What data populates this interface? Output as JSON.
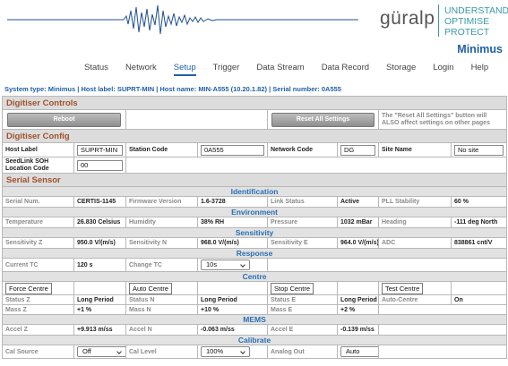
{
  "header": {
    "logo": "güralp",
    "tagline": [
      "UNDERSTAND",
      "OPTIMISE",
      "PROTECT"
    ],
    "product": "Minimus"
  },
  "nav": {
    "items": [
      "Status",
      "Network",
      "Setup",
      "Trigger",
      "Data Stream",
      "Data Record",
      "Storage",
      "Login",
      "Help"
    ],
    "active": 2
  },
  "system_info": "System type: Minimus | Host label: SUPRT-MIN | Host name: MIN-A555 (10.20.1.82) | Serial number: 0A555",
  "controls": {
    "title": "Digitiser Controls",
    "buttons": [
      "Reboot",
      "Reset All Settings"
    ],
    "note": "The \"Reset All Settings\" button will ALSO affect settings on other pages"
  },
  "config": {
    "title": "Digitiser Config",
    "rows": [
      [
        {
          "label": "Host Label",
          "input": "SUPRT-MIN"
        },
        {
          "label": "Station Code",
          "input": "0A555"
        },
        {
          "label": "Network Code",
          "input": "DG"
        },
        {
          "label": "Site Name",
          "input": "No site"
        }
      ],
      [
        {
          "label": "SeedLink SOH Location Code",
          "input": "00"
        }
      ]
    ]
  },
  "sensor": {
    "title": "Serial Sensor",
    "groups": [
      {
        "title": "Identification",
        "rows": [
          [
            {
              "label": "Serial Num.",
              "value": "CERTIS-1145"
            },
            {
              "label": "Firmware Version",
              "value": "1.6-3728"
            },
            {
              "label": "Link Status",
              "value": "Active"
            },
            {
              "label": "PLL Stability",
              "value": "60 %"
            }
          ]
        ]
      },
      {
        "title": "Environment",
        "rows": [
          [
            {
              "label": "Temperature",
              "value": "26.830 Celsius"
            },
            {
              "label": "Humidity",
              "value": "38% RH"
            },
            {
              "label": "Pressure",
              "value": "1032 mBar"
            },
            {
              "label": "Heading",
              "value": "-111 deg North"
            }
          ]
        ]
      },
      {
        "title": "Sensitivity",
        "rows": [
          [
            {
              "label": "Sensitivity Z",
              "value": "950.0 V/(m/s)"
            },
            {
              "label": "Sensitivity N",
              "value": "968.0 V/(m/s)"
            },
            {
              "label": "Sensitivity E",
              "value": "964.0 V/(m/s)"
            },
            {
              "label": "ADC",
              "value": "838861 cnt/V"
            }
          ]
        ]
      },
      {
        "title": "Response",
        "rows": [
          [
            {
              "label": "Current TC",
              "value": "120 s"
            },
            {
              "label": "Change TC",
              "select": "10s"
            }
          ]
        ]
      },
      {
        "title": "Centre",
        "buttons": [
          "Force Centre",
          "Auto Centre",
          "Stop Centre",
          "Test Centre"
        ],
        "rows": [
          [
            {
              "label": "Status Z",
              "value": "Long Period"
            },
            {
              "label": "Status N",
              "value": "Long Period"
            },
            {
              "label": "Status E",
              "value": "Long Period"
            },
            {
              "label": "Auto-Centre",
              "value": "On"
            }
          ],
          [
            {
              "label": "Mass Z",
              "value": "+1 %"
            },
            {
              "label": "Mass N",
              "value": "+10 %"
            },
            {
              "label": "Mass E",
              "value": "+2 %"
            }
          ]
        ]
      },
      {
        "title": "MEMS",
        "rows": [
          [
            {
              "label": "Accel Z",
              "value": "+9.913 m/ss"
            },
            {
              "label": "Accel N",
              "value": "-0.063 m/ss"
            },
            {
              "label": "Accel E",
              "value": "-0.139 m/ss"
            }
          ]
        ]
      },
      {
        "title": "Calibrate",
        "rows": [
          [
            {
              "label": "Cal Source",
              "select": "Off"
            },
            {
              "label": "Cal Level",
              "select": "100%"
            },
            {
              "label": "Analog Out",
              "select": "Auto"
            }
          ]
        ]
      }
    ]
  }
}
